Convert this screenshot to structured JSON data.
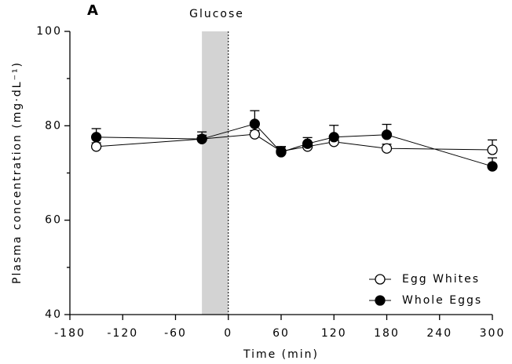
{
  "chart_data": {
    "type": "line",
    "panel_label": "A",
    "annotation": "Glucose",
    "glucose_window": {
      "start": -30,
      "end": 0
    },
    "x_label": "Time (min)",
    "y_label": "Plasma concentration (mg·dL⁻¹)",
    "xlim": [
      -180,
      300
    ],
    "xticks": [
      -180,
      -120,
      -60,
      0,
      60,
      120,
      180,
      240,
      300
    ],
    "ylim": [
      40,
      100
    ],
    "yticks": [
      40,
      60,
      80,
      100
    ],
    "yminorticks": [
      50,
      70,
      90
    ],
    "legend": "lower right",
    "x": [
      -150,
      -30,
      30,
      60,
      90,
      120,
      180,
      300
    ],
    "series": [
      {
        "name": "Egg Whites",
        "color": "#ffffff",
        "values": [
          75.6,
          77.2,
          78.2,
          74.6,
          75.6,
          76.6,
          75.2,
          74.9
        ],
        "errors": [
          0.8,
          0.8,
          0.8,
          1.0,
          0.8,
          0.8,
          0.9,
          2.1
        ]
      },
      {
        "name": "Whole Eggs",
        "color": "#000000",
        "values": [
          77.6,
          77.2,
          80.4,
          74.4,
          76.2,
          77.6,
          78.1,
          71.4
        ],
        "errors": [
          1.8,
          1.5,
          2.8,
          1.1,
          1.3,
          2.5,
          2.2,
          1.8
        ]
      }
    ]
  }
}
